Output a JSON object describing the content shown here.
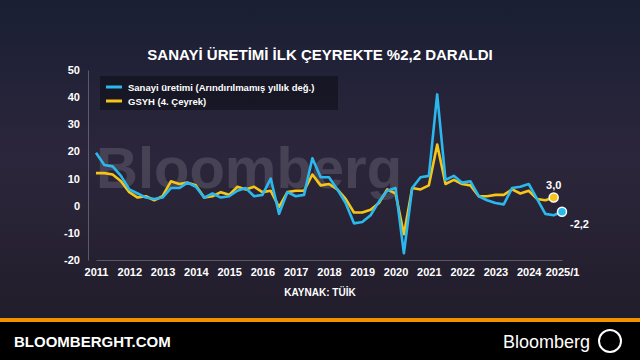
{
  "chart_data": {
    "type": "line",
    "title": "SANAYİ ÜRETİMİ İLK ÇEYREKTE %2,2 DARALDI",
    "source": "KAYNAK: TÜİK",
    "watermark": "Bloomberg",
    "footer": {
      "left": "BLOOMBERGHT.COM",
      "right": "Bloomberg"
    },
    "categories": [
      "2011",
      null,
      null,
      null,
      "2012",
      null,
      null,
      null,
      "2013",
      null,
      null,
      null,
      "2014",
      null,
      null,
      null,
      "2015",
      null,
      null,
      null,
      "2016",
      null,
      null,
      null,
      "2017",
      null,
      null,
      null,
      "2018",
      null,
      null,
      null,
      "2019",
      null,
      null,
      null,
      "2020",
      null,
      null,
      null,
      "2021",
      null,
      null,
      null,
      "2022",
      null,
      null,
      null,
      "2023",
      null,
      null,
      null,
      "2024",
      null,
      null,
      null,
      "2025/1"
    ],
    "series": [
      {
        "name": "Sanayi üretimi (Arındırılmamış yıllık değ.)",
        "color": "#2bb8ec",
        "values": [
          19.5,
          15.0,
          14.5,
          11.0,
          6.0,
          4.5,
          3.0,
          2.5,
          3.0,
          6.5,
          6.5,
          8.5,
          7.0,
          3.0,
          4.5,
          3.0,
          3.5,
          5.5,
          6.5,
          3.5,
          4.0,
          10.0,
          -3.0,
          5.0,
          3.5,
          4.0,
          17.5,
          10.5,
          10.5,
          6.0,
          1.0,
          -6.5,
          -6.0,
          -3.5,
          1.5,
          5.5,
          6.5,
          -17.5,
          6.5,
          10.5,
          11.0,
          41.0,
          9.5,
          11.0,
          8.5,
          9.0,
          3.5,
          2.0,
          1.0,
          0.5,
          6.5,
          7.0,
          8.0,
          2.5,
          -3.0,
          -3.5,
          -2.2
        ],
        "value_labels": [
          null,
          null,
          null,
          null,
          null,
          null,
          null,
          null,
          null,
          null,
          null,
          null,
          null,
          null,
          null,
          null,
          null,
          null,
          null,
          null,
          null,
          null,
          null,
          null,
          null,
          null,
          null,
          null,
          null,
          null,
          null,
          null,
          null,
          null,
          null,
          null,
          null,
          null,
          null,
          null,
          null,
          null,
          null,
          null,
          null,
          null,
          null,
          null,
          null,
          null,
          null,
          null,
          null,
          null,
          null,
          null,
          "-2,2"
        ]
      },
      {
        "name": "GSYH (4. Çeyrek)",
        "color": "#f5c518",
        "values": [
          12.0,
          12.0,
          11.5,
          9.0,
          5.0,
          3.0,
          3.5,
          2.0,
          3.5,
          9.0,
          8.0,
          8.5,
          7.5,
          3.0,
          3.5,
          5.0,
          4.0,
          7.0,
          6.0,
          7.0,
          5.0,
          5.5,
          -0.5,
          5.0,
          5.5,
          5.5,
          11.5,
          7.5,
          8.0,
          6.0,
          2.5,
          -2.5,
          -2.5,
          -1.5,
          1.0,
          6.0,
          4.5,
          -10.5,
          6.5,
          6.0,
          7.5,
          22.5,
          8.0,
          9.5,
          8.0,
          7.5,
          3.5,
          3.5,
          4.0,
          4.0,
          6.0,
          4.5,
          5.5,
          2.5,
          2.0,
          3.0,
          null
        ],
        "value_labels": [
          null,
          null,
          null,
          null,
          null,
          null,
          null,
          null,
          null,
          null,
          null,
          null,
          null,
          null,
          null,
          null,
          null,
          null,
          null,
          null,
          null,
          null,
          null,
          null,
          null,
          null,
          null,
          null,
          null,
          null,
          null,
          null,
          null,
          null,
          null,
          null,
          null,
          null,
          null,
          null,
          null,
          null,
          null,
          null,
          null,
          null,
          null,
          null,
          null,
          null,
          null,
          null,
          null,
          null,
          null,
          "3,0",
          null
        ]
      }
    ],
    "ylim": [
      -20,
      50
    ],
    "yticks": [
      -20,
      -10,
      0,
      10,
      20,
      30,
      40,
      50
    ],
    "grid": false,
    "legend": "upper left"
  }
}
